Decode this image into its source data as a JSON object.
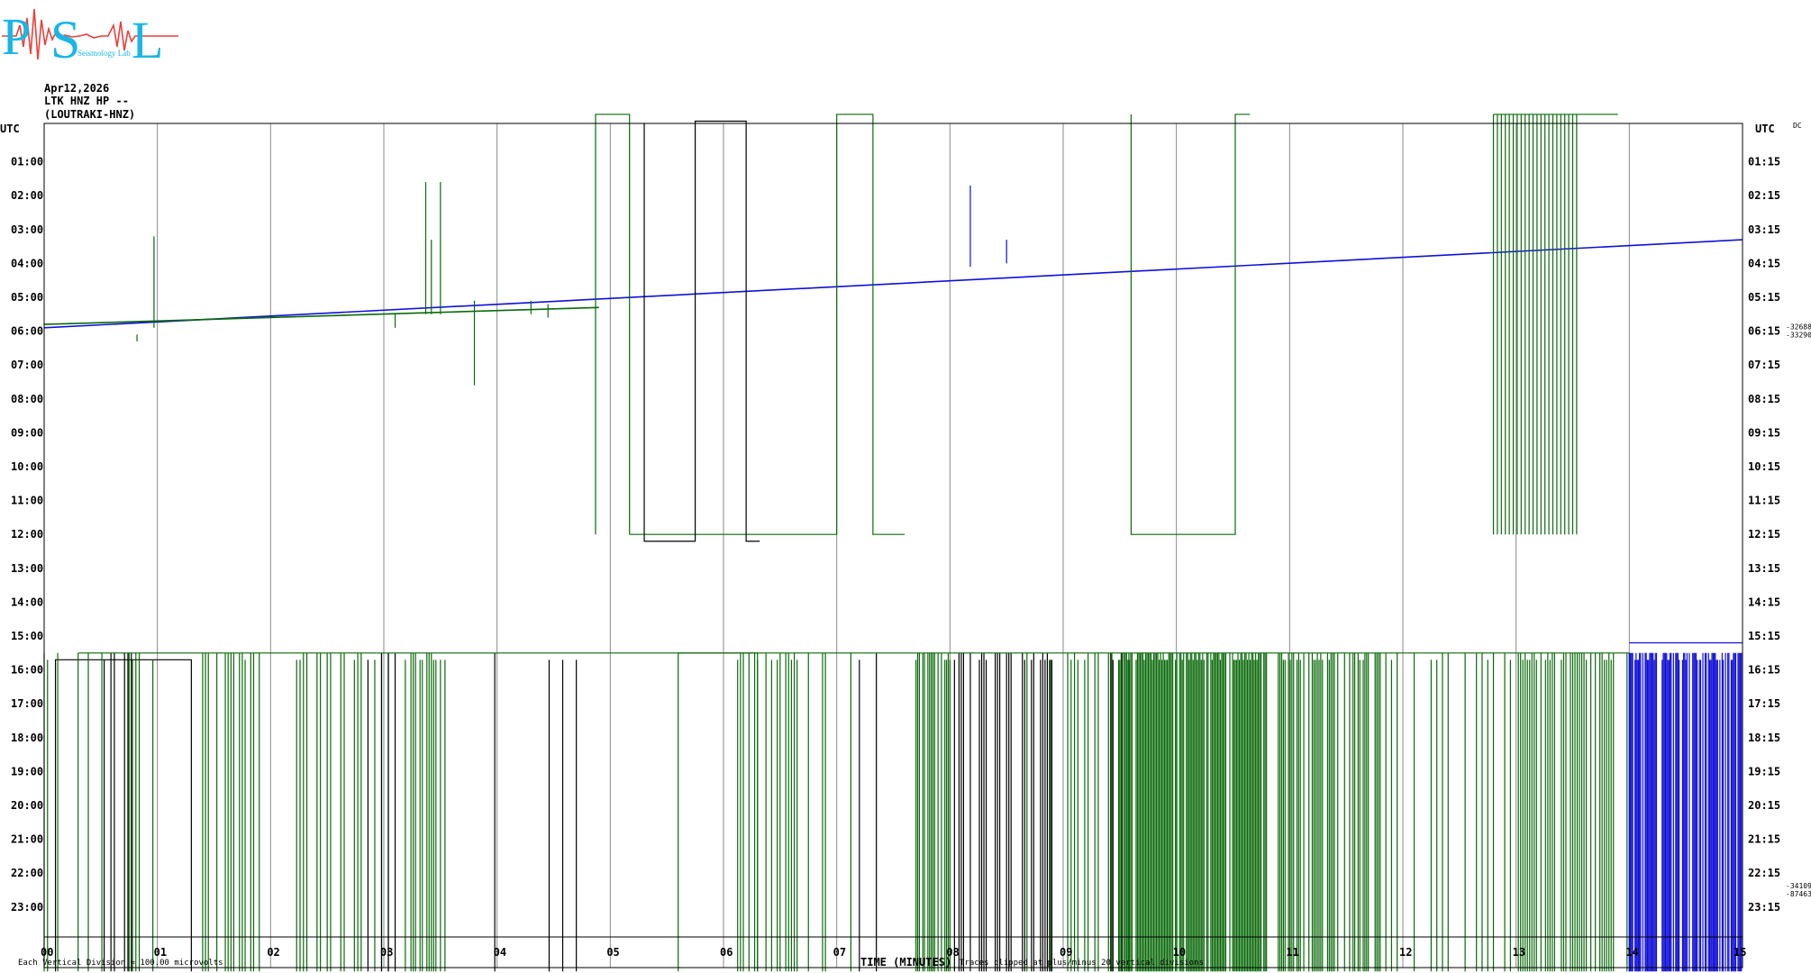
{
  "logo": {
    "letters": [
      "P",
      "S",
      "L"
    ],
    "subtext": "Seismology Lab",
    "letter_color": "#19b6e6",
    "wave_color": "#e8413c"
  },
  "header": {
    "date": "Apr12,2026",
    "station": "LTK HNZ HP --",
    "location": "(LOUTRAKI-HNZ)"
  },
  "plot": {
    "left_axis_title": "UTC",
    "right_axis_title": "UTC",
    "dc_label": "DC",
    "left_hours": [
      "01:00",
      "02:00",
      "03:00",
      "04:00",
      "05:00",
      "06:00",
      "07:00",
      "08:00",
      "09:00",
      "10:00",
      "11:00",
      "12:00",
      "13:00",
      "14:00",
      "15:00",
      "16:00",
      "17:00",
      "18:00",
      "19:00",
      "20:00",
      "21:00",
      "22:00",
      "23:00"
    ],
    "right_hours": [
      "01:15",
      "02:15",
      "03:15",
      "04:15",
      "05:15",
      "06:15",
      "07:15",
      "08:15",
      "09:15",
      "10:15",
      "11:15",
      "12:15",
      "13:15",
      "14:15",
      "15:15",
      "16:15",
      "17:15",
      "18:15",
      "19:15",
      "20:15",
      "21:15",
      "22:15",
      "23:15"
    ],
    "minute_labels": [
      "00",
      "01",
      "02",
      "03",
      "04",
      "05",
      "06",
      "07",
      "08",
      "09",
      "10",
      "11",
      "12",
      "13",
      "14",
      "15"
    ],
    "x_axis_title": "TIME (MINUTES)",
    "dc_values": [
      {
        "hour": 6,
        "values": [
          "-32688",
          "-33290"
        ]
      },
      {
        "hour": 22.5,
        "values": [
          "-34109",
          "-87463"
        ]
      }
    ],
    "footer_left": "Each Vertical Division = 100.00 microvolts",
    "footer_right": "Traces clipped at plus/minus 20 vertical divisions",
    "colors": {
      "blue": "#1010d8",
      "green": "#0a6a0a",
      "black": "#000000",
      "grid": "#8a8a8a"
    }
  },
  "chart_data": {
    "type": "line",
    "title": "",
    "xlabel": "TIME (MINUTES)",
    "ylabel": "UTC",
    "xlim": [
      0,
      15
    ],
    "ylim_hours": [
      0,
      24
    ],
    "series": [
      {
        "color": "#1010d8",
        "start_hour": 0,
        "drift": [
          [
            0,
            5.9
          ],
          [
            15,
            3.3
          ]
        ]
      },
      {
        "color": "#0a6a0a",
        "start_hour": 1,
        "drift": [
          [
            0,
            5.8
          ],
          [
            4.9,
            5.3
          ]
        ]
      }
    ]
  }
}
